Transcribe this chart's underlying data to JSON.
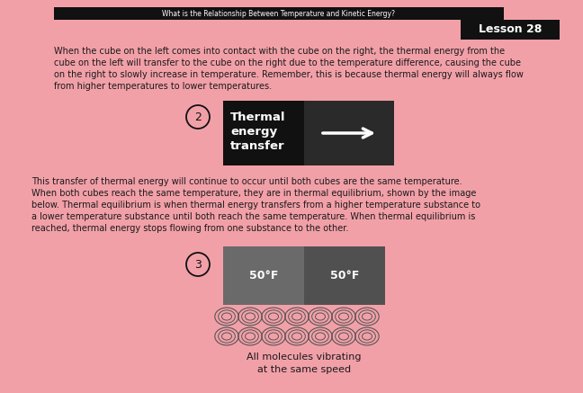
{
  "bg_color": "#f2a0a8",
  "title_text": "What is the Relationship Between Temperature and Kinetic Energy?",
  "lesson_label": "Lesson 28",
  "body_text_1": "When the cube on the left comes into contact with the cube on the right, the thermal energy from the\ncube on the left will transfer to the cube on the right due to the temperature difference, causing the cube\non the right to slowly increase in temperature. Remember, this is because thermal energy will always flow\nfrom higher temperatures to lower temperatures.",
  "circle2_label": "2",
  "thermal_box_left_color": "#111111",
  "thermal_box_right_color": "#2a2a2a",
  "thermal_text_line1": "Thermal",
  "thermal_text_line2": "energy",
  "thermal_text_line3": "transfer",
  "body_text_2": "This transfer of thermal energy will continue to occur until both cubes are the same temperature.\nWhen both cubes reach the same temperature, they are in thermal equilibrium, shown by the image\nbelow. Thermal equilibrium is when thermal energy transfers from a higher temperature substance to\na lower temperature substance until both reach the same temperature. When thermal equilibrium is\nreached, thermal energy stops flowing from one substance to the other.",
  "circle3_label": "3",
  "temp_left": "50°F",
  "temp_right": "50°F",
  "molecule_caption_1": "All molecules vibrating",
  "molecule_caption_2": "at the same speed",
  "title_bg": "#111111",
  "lesson_bg": "#111111",
  "lesson_color": "#ffffff",
  "title_color": "#ffffff",
  "eq_box_left_color": "#6a6a6a",
  "eq_box_right_color": "#505050",
  "mol_edge_color": "#555555",
  "mol_face_color": "#f2a0a8",
  "text_color": "#1a1a1a"
}
